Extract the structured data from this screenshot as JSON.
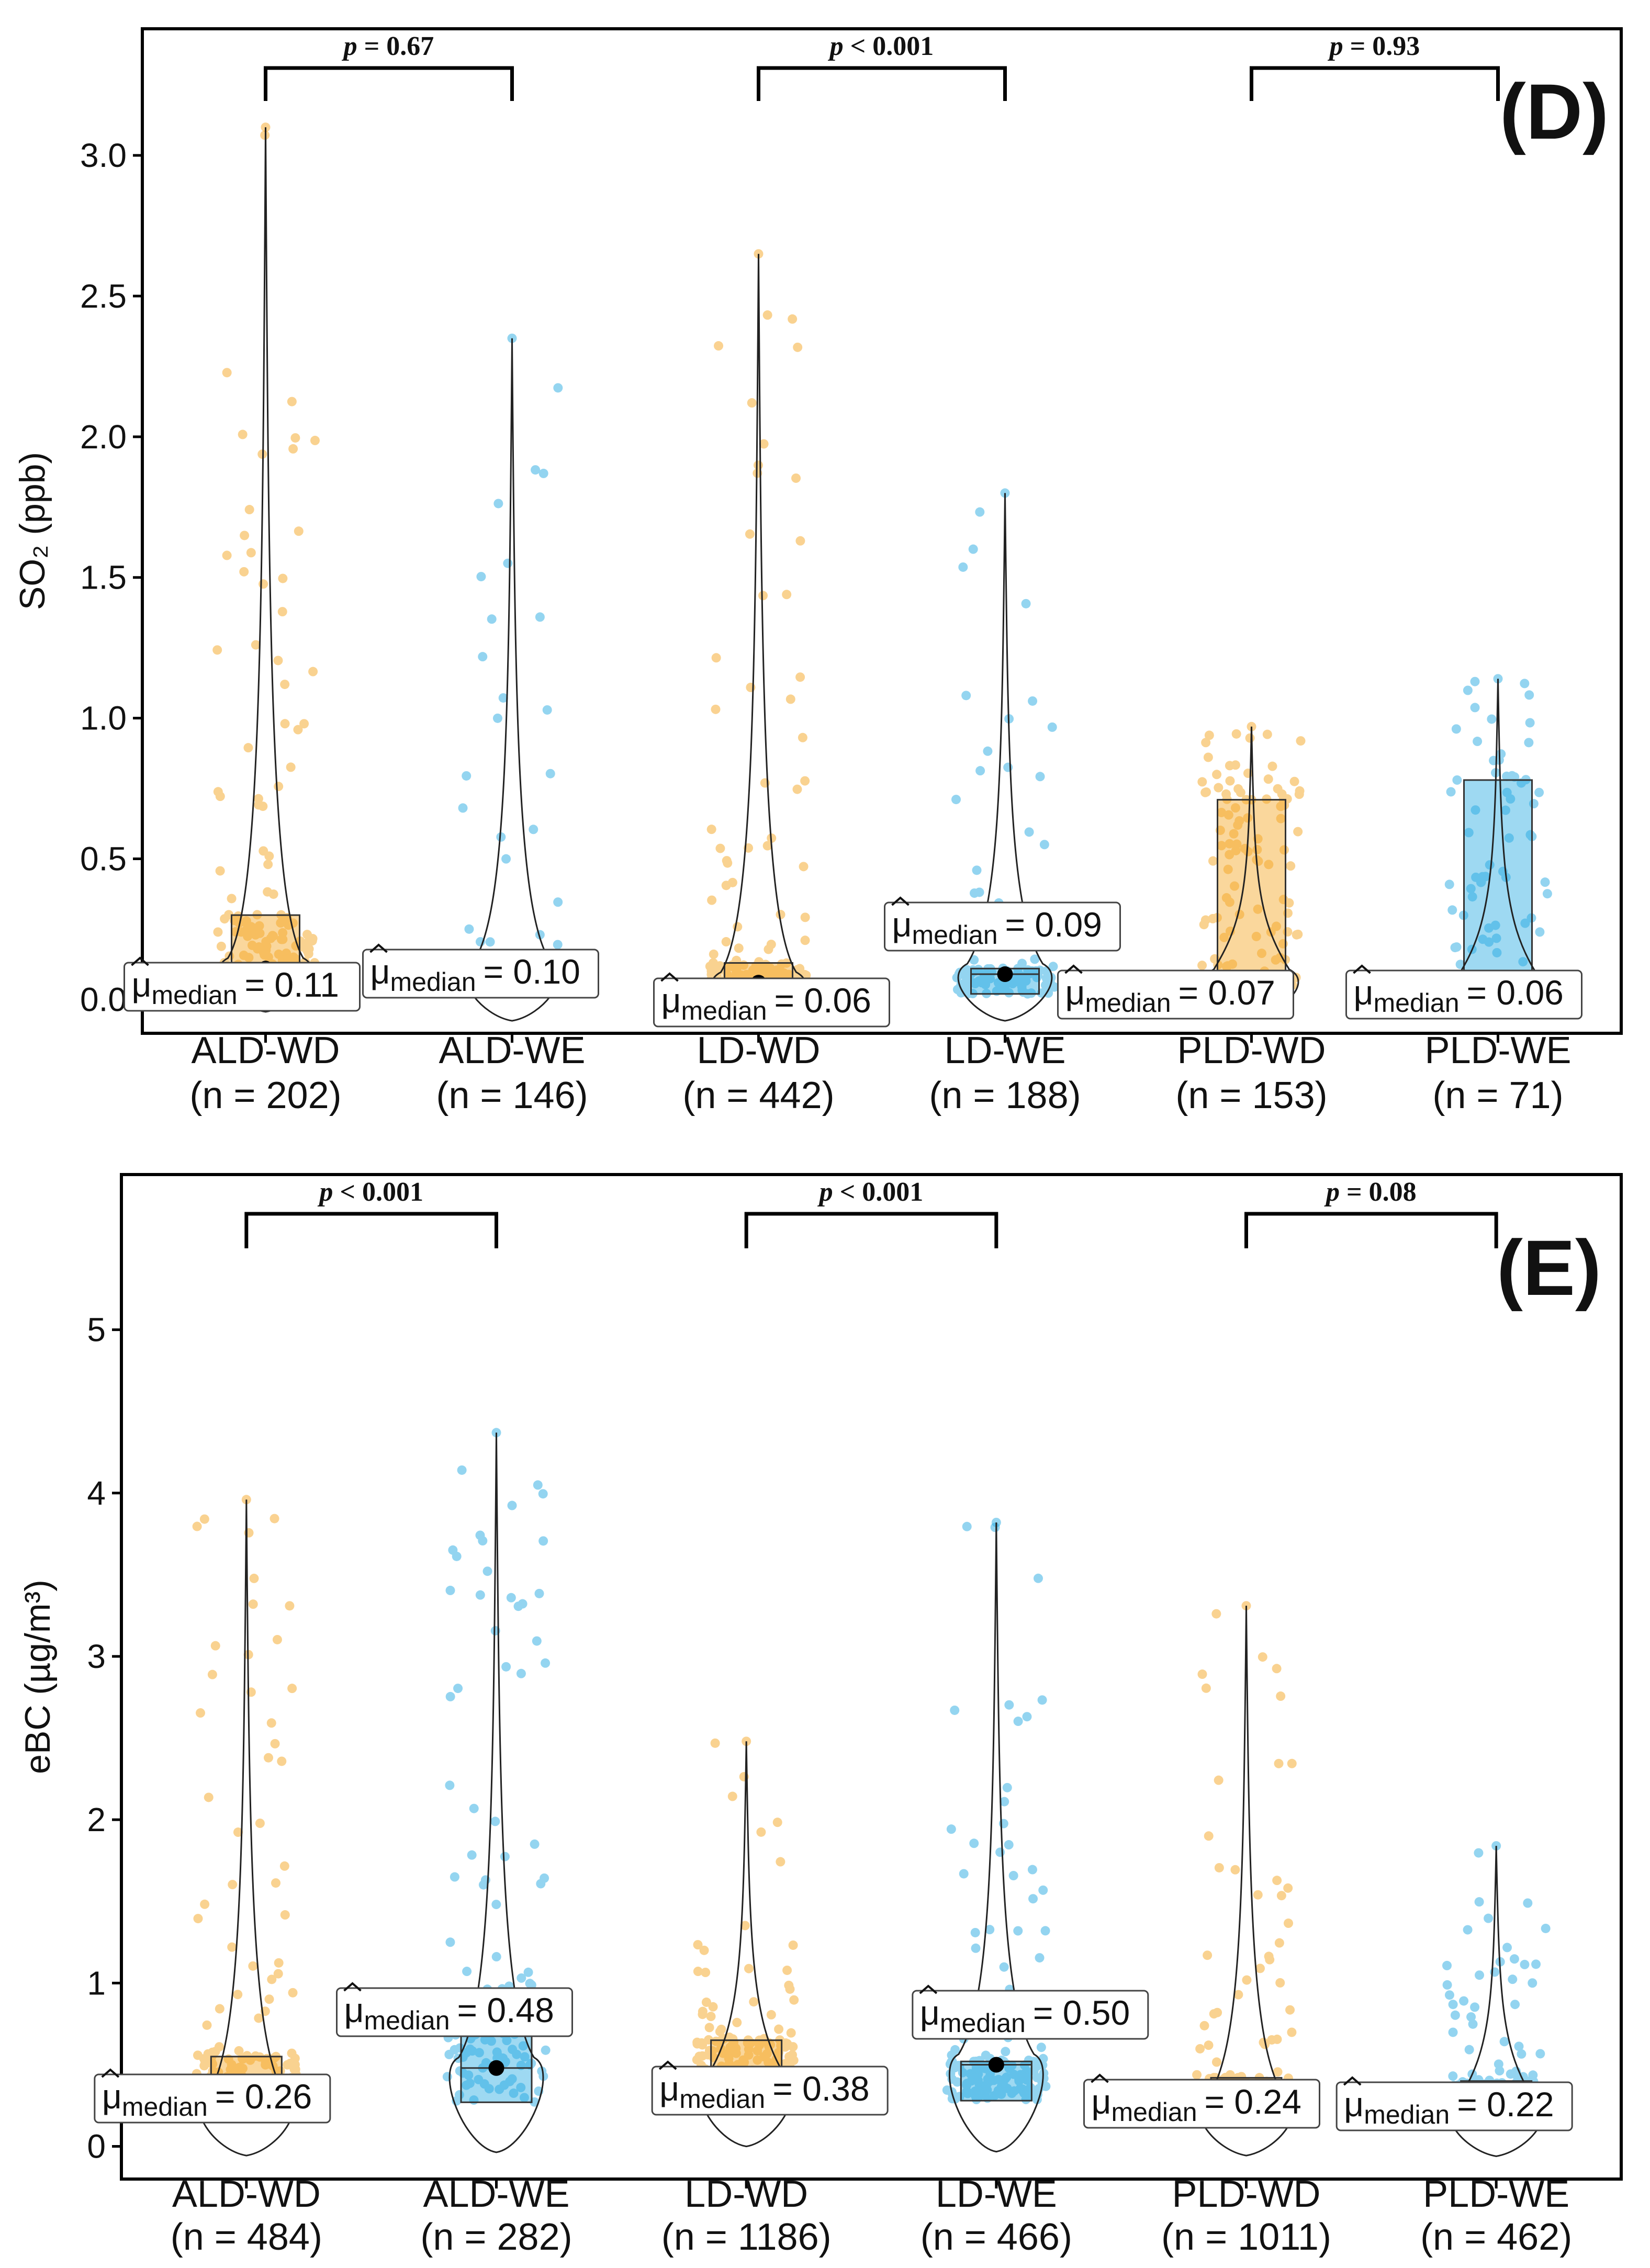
{
  "colors": {
    "weekday": "#F5A623",
    "weekend": "#29ABE2",
    "axis": "#000000"
  },
  "chart_data": [
    {
      "type": "violin-box-jitter",
      "panel_tag": "(D)",
      "ylabel": "SO₂ (ppb)",
      "ylim": [
        -0.12,
        3.45
      ],
      "yticks": [
        0.0,
        0.5,
        1.0,
        1.5,
        2.0,
        2.5,
        3.0
      ],
      "ytick_labels": [
        "0.0",
        "0.5",
        "1.0",
        "1.5",
        "2.0",
        "2.5",
        "3.0"
      ],
      "groups": [
        {
          "name": "ALD-WD",
          "n_label": "(n = 202)",
          "type": "weekday",
          "median": 0.11,
          "median_label": "= 0.11",
          "q1": 0.1,
          "q3": 0.3,
          "max": 3.1
        },
        {
          "name": "ALD-WE",
          "n_label": "(n = 146)",
          "type": "weekend",
          "median": 0.1,
          "median_label": "= 0.10",
          "q1": 0.02,
          "q3": 0.12,
          "max": 2.35
        },
        {
          "name": "LD-WD",
          "n_label": "(n = 442)",
          "type": "weekday",
          "median": 0.06,
          "median_label": "= 0.06",
          "q1": 0.03,
          "q3": 0.13,
          "max": 2.65
        },
        {
          "name": "LD-WE",
          "n_label": "(n = 188)",
          "type": "weekend",
          "median": 0.09,
          "median_label": "= 0.09",
          "q1": 0.02,
          "q3": 0.11,
          "max": 1.8
        },
        {
          "name": "PLD-WD",
          "n_label": "(n = 153)",
          "type": "weekday",
          "median": 0.07,
          "median_label": "= 0.07",
          "q1": 0.05,
          "q3": 0.71,
          "max": 0.97
        },
        {
          "name": "PLD-WE",
          "n_label": "(n = 71)",
          "type": "weekend",
          "median": 0.06,
          "median_label": "= 0.06",
          "q1": 0.05,
          "q3": 0.78,
          "max": 1.14
        }
      ],
      "comparisons": [
        {
          "pair": [
            "ALD-WD",
            "ALD-WE"
          ],
          "p_prefix": "p",
          "p_value": "= 0.67"
        },
        {
          "pair": [
            "LD-WD",
            "LD-WE"
          ],
          "p_prefix": "p",
          "p_value": "< 0.001"
        },
        {
          "pair": [
            "PLD-WD",
            "PLD-WE"
          ],
          "p_prefix": "p",
          "p_value": "= 0.93"
        }
      ]
    },
    {
      "type": "violin-box-jitter",
      "panel_tag": "(E)",
      "ylabel": "eBC (µg/m³)",
      "ylim": [
        -0.2,
        5.95
      ],
      "yticks": [
        0,
        1,
        2,
        3,
        4,
        5
      ],
      "ytick_labels": [
        "0",
        "1",
        "2",
        "3",
        "4",
        "5"
      ],
      "groups": [
        {
          "name": "ALD-WD",
          "n_label": "(n = 484)",
          "type": "weekday",
          "median": 0.26,
          "median_label": "= 0.26",
          "q1": 0.22,
          "q3": 0.55,
          "max": 3.96
        },
        {
          "name": "ALD-WE",
          "n_label": "(n = 282)",
          "type": "weekend",
          "median": 0.48,
          "median_label": "= 0.48",
          "q1": 0.27,
          "q3": 0.89,
          "max": 4.37
        },
        {
          "name": "LD-WD",
          "n_label": "(n = 1186)",
          "type": "weekday",
          "median": 0.38,
          "median_label": "= 0.38",
          "q1": 0.36,
          "q3": 0.65,
          "max": 2.48
        },
        {
          "name": "LD-WE",
          "n_label": "(n = 466)",
          "type": "weekend",
          "median": 0.5,
          "median_label": "= 0.50",
          "q1": 0.28,
          "q3": 0.52,
          "max": 3.82
        },
        {
          "name": "PLD-WD",
          "n_label": "(n = 1011)",
          "type": "weekday",
          "median": 0.24,
          "median_label": "= 0.24",
          "q1": 0.22,
          "q3": 0.42,
          "max": 3.31
        },
        {
          "name": "PLD-WE",
          "n_label": "(n = 462)",
          "type": "weekend",
          "median": 0.22,
          "median_label": "= 0.22",
          "q1": 0.21,
          "q3": 0.4,
          "max": 1.84
        }
      ],
      "comparisons": [
        {
          "pair": [
            "ALD-WD",
            "ALD-WE"
          ],
          "p_prefix": "p",
          "p_value": "< 0.001"
        },
        {
          "pair": [
            "LD-WD",
            "LD-WE"
          ],
          "p_prefix": "p",
          "p_value": "< 0.001"
        },
        {
          "pair": [
            "PLD-WD",
            "PLD-WE"
          ],
          "p_prefix": "p",
          "p_value": "= 0.08"
        }
      ]
    }
  ],
  "median_symbol": "μ",
  "median_subscript": "median"
}
